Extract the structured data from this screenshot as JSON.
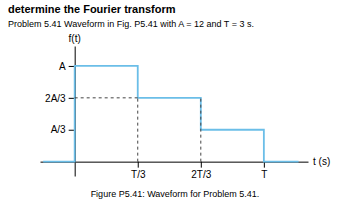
{
  "chart_data": {
    "type": "line",
    "title": "determine the Fourier transform",
    "subtitle": "Problem 5.41 Waveform in Fig. P5.41 with A = 12 and T = 3 s.",
    "caption": "Figure P5.41: Waveform for Problem 5.41.",
    "xlabel": "t (s)",
    "ylabel": "f(t)",
    "series": [
      {
        "x": [
          -0.5,
          0,
          0,
          1,
          1,
          2,
          2,
          3,
          3,
          3.55
        ],
        "values": [
          0,
          0,
          12,
          12,
          8,
          8,
          4,
          4,
          0,
          0
        ],
        "color": "#6bbee8",
        "line_style": "solid"
      },
      {
        "x": [
          1,
          1
        ],
        "values": [
          0,
          8
        ],
        "color": "#444444",
        "line_style": "dashed"
      },
      {
        "x": [
          2,
          2
        ],
        "values": [
          0,
          8
        ],
        "color": "#444444",
        "line_style": "dashed"
      },
      {
        "x": [
          0,
          1
        ],
        "values": [
          8,
          8
        ],
        "color": "#444444",
        "line_style": "dashed"
      }
    ],
    "xlim": [
      -0.55,
      3.7
    ],
    "ylim": [
      -1.8,
      14.5
    ],
    "xticks": [
      {
        "value": 1,
        "label": "T/3"
      },
      {
        "value": 2,
        "label": "2T/3"
      },
      {
        "value": 3,
        "label": "T"
      }
    ],
    "yticks": [
      {
        "value": 4,
        "label": "A/3"
      },
      {
        "value": 8,
        "label": "2A/3"
      },
      {
        "value": 12,
        "label": "A"
      }
    ],
    "grid": false
  }
}
